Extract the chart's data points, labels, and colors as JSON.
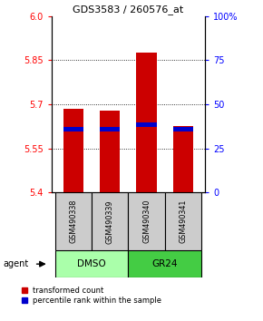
{
  "title": "GDS3583 / 260576_at",
  "samples": [
    "GSM490338",
    "GSM490339",
    "GSM490340",
    "GSM490341"
  ],
  "red_values": [
    5.685,
    5.68,
    5.875,
    5.625
  ],
  "blue_values": [
    5.615,
    5.615,
    5.63,
    5.615
  ],
  "ymin": 5.4,
  "ymax": 6.0,
  "yticks_left": [
    5.4,
    5.55,
    5.7,
    5.85,
    6.0
  ],
  "yticks_right_pct": [
    0,
    25,
    50,
    75,
    100
  ],
  "bar_color_red": "#CC0000",
  "bar_color_blue": "#0000CC",
  "bar_width": 0.55,
  "legend_red": "transformed count",
  "legend_blue": "percentile rank within the sample",
  "agent_label": "agent",
  "sample_box_color": "#CCCCCC",
  "dmso_color": "#AAFFAA",
  "gr24_color": "#44CC44",
  "groups": [
    {
      "label": "DMSO",
      "start": 0,
      "end": 2
    },
    {
      "label": "GR24",
      "start": 2,
      "end": 4
    }
  ]
}
